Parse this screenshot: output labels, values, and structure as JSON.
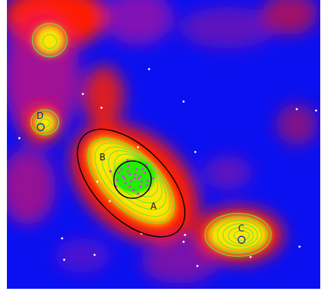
{
  "image": {
    "description_colors": {
      "background": "#0a10f0",
      "hot": "#ff1e00",
      "warm": "#ffe600",
      "contour": "#6fe33a",
      "core": "#22ee00",
      "ring": "#000000",
      "member_dots": "#e040e0",
      "field_dots": "#ffffff",
      "small_circle": "#1a2aa0"
    },
    "labels": {
      "A": "A",
      "B": "B",
      "C": "C",
      "D": "D"
    }
  }
}
